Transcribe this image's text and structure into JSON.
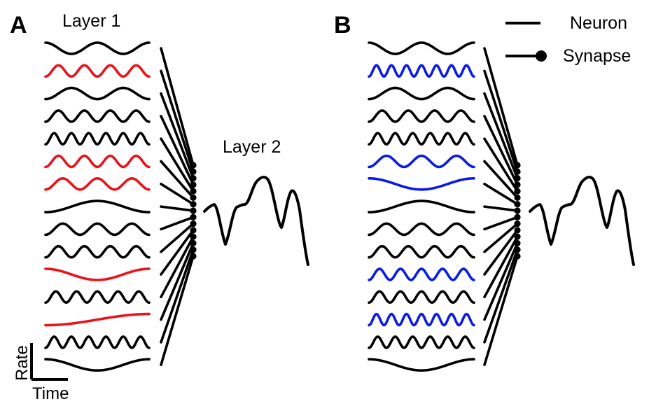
{
  "panels": [
    {
      "letter": "A",
      "layer1_label": "Layer 1",
      "layer2_label": "Layer 2",
      "neurons": [
        {
          "cycles": 2.0,
          "color": "black",
          "phase": 0
        },
        {
          "cycles": 4.0,
          "color": "red",
          "phase": 3.14
        },
        {
          "cycles": 2.0,
          "color": "black",
          "phase": 3.14
        },
        {
          "cycles": 4.0,
          "color": "black",
          "phase": 3.14
        },
        {
          "cycles": 6.0,
          "color": "black",
          "phase": 3.14
        },
        {
          "cycles": 4.0,
          "color": "red",
          "phase": 3.14
        },
        {
          "cycles": 3.0,
          "color": "red",
          "phase": 3.14
        },
        {
          "cycles": 1.0,
          "color": "black",
          "phase": 3.14
        },
        {
          "cycles": 3.0,
          "color": "black",
          "phase": 3.14
        },
        {
          "cycles": 4.0,
          "color": "black",
          "phase": 3.14
        },
        {
          "cycles": 1.0,
          "color": "red",
          "phase": 0
        },
        {
          "cycles": 5.0,
          "color": "black",
          "phase": 3.14
        },
        {
          "cycles": 0.5,
          "color": "red",
          "phase": 3.14
        },
        {
          "cycles": 6.0,
          "color": "black",
          "phase": 3.14
        },
        {
          "cycles": 1.0,
          "color": "black",
          "phase": 0
        }
      ]
    },
    {
      "letter": "B",
      "neurons": [
        {
          "cycles": 2.0,
          "color": "black",
          "phase": 0
        },
        {
          "cycles": 7.0,
          "color": "blue",
          "phase": 3.14
        },
        {
          "cycles": 2.0,
          "color": "black",
          "phase": 3.14
        },
        {
          "cycles": 4.0,
          "color": "black",
          "phase": 3.14
        },
        {
          "cycles": 6.0,
          "color": "black",
          "phase": 3.14
        },
        {
          "cycles": 3.0,
          "color": "blue",
          "phase": 3.14
        },
        {
          "cycles": 1.0,
          "color": "blue",
          "phase": 0
        },
        {
          "cycles": 1.0,
          "color": "black",
          "phase": 3.14
        },
        {
          "cycles": 3.0,
          "color": "black",
          "phase": 3.14
        },
        {
          "cycles": 4.0,
          "color": "black",
          "phase": 3.14
        },
        {
          "cycles": 5.0,
          "color": "blue",
          "phase": 3.14
        },
        {
          "cycles": 5.0,
          "color": "black",
          "phase": 3.14
        },
        {
          "cycles": 7.0,
          "color": "blue",
          "phase": 3.14
        },
        {
          "cycles": 6.0,
          "color": "black",
          "phase": 3.14
        },
        {
          "cycles": 1.0,
          "color": "black",
          "phase": 0
        }
      ]
    }
  ],
  "axes": {
    "y_label": "Rate",
    "x_label": "Time"
  },
  "legend": {
    "neuron_label": "Neuron",
    "synapse_label": "Synapse"
  },
  "colors": {
    "black": "#000000",
    "red": "#e8141a",
    "blue": "#0a1be8"
  }
}
